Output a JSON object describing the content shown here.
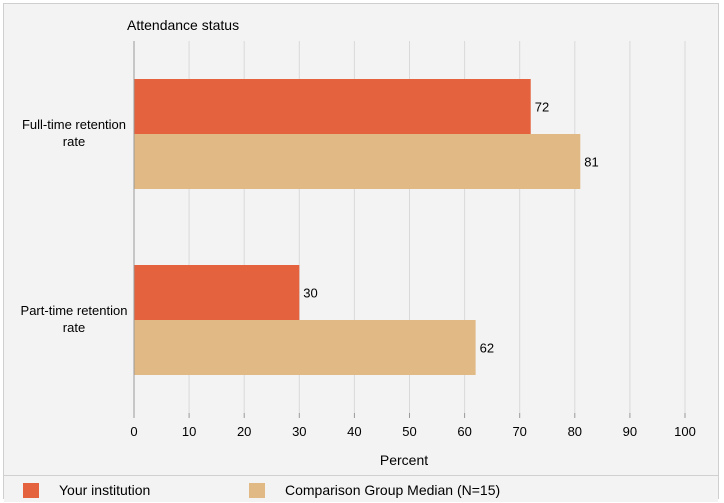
{
  "colors": {
    "your_institution": "#e5623f",
    "comparison_median": "#e0b985",
    "gridline": "#d9d9d9",
    "background": "#f3f3f3"
  },
  "chart_data": {
    "type": "bar",
    "orientation": "horizontal",
    "title": "Attendance status",
    "xlabel": "Percent",
    "ylabel": "",
    "categories": [
      "Full-time retention rate",
      "Part-time retention rate"
    ],
    "category_lines": [
      [
        "Full-time retention",
        "rate"
      ],
      [
        "Part-time retention",
        "rate"
      ]
    ],
    "series": [
      {
        "name": "Your institution",
        "values": [
          72,
          30
        ]
      },
      {
        "name": "Comparison Group Median (N=15)",
        "values": [
          81,
          62
        ]
      }
    ],
    "xlim": [
      0,
      100
    ],
    "xticks": [
      0,
      10,
      20,
      30,
      40,
      50,
      60,
      70,
      80,
      90,
      100
    ],
    "grid": true,
    "legend_position": "bottom"
  }
}
